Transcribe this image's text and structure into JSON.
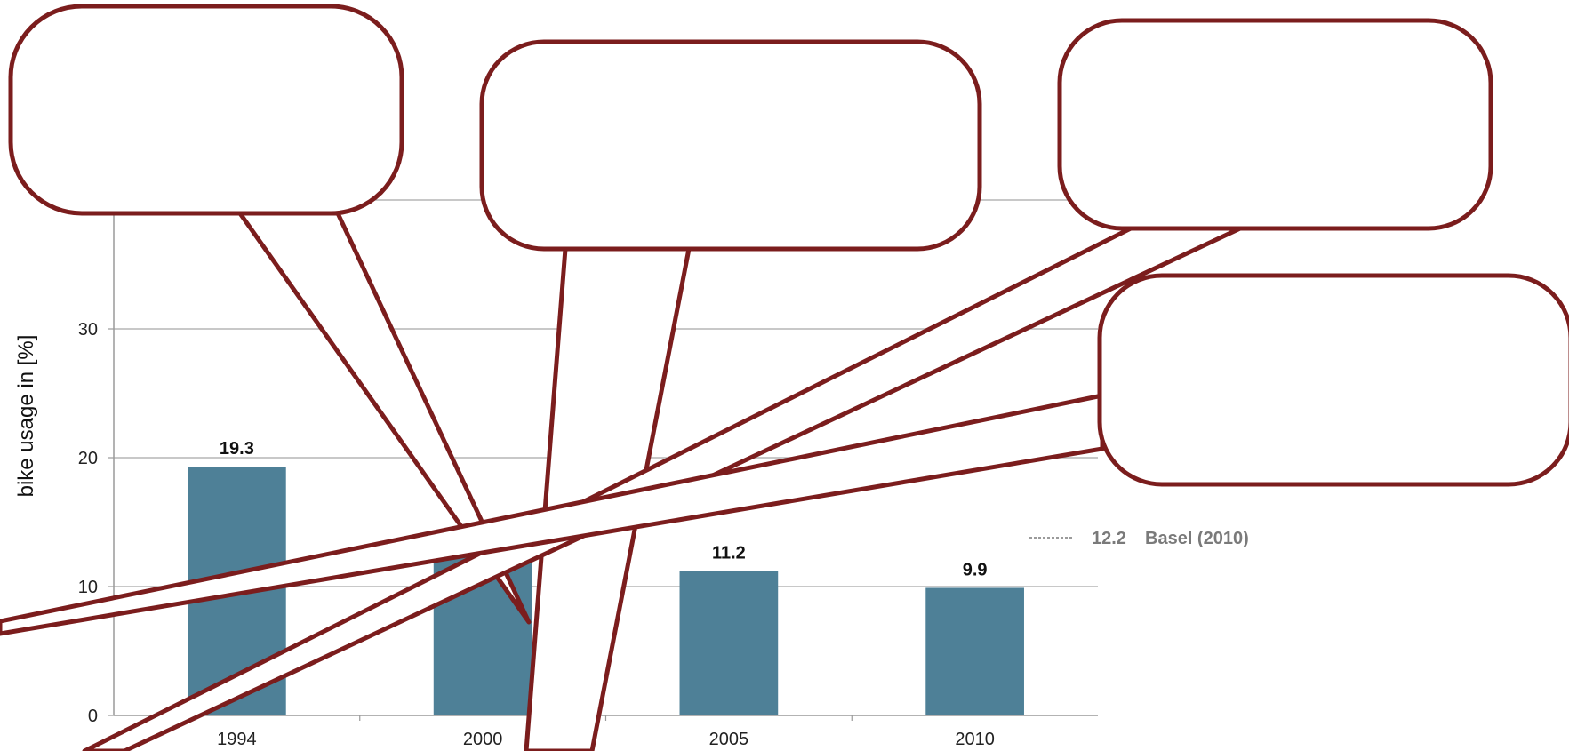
{
  "chart_data": {
    "type": "bar",
    "categories": [
      "1994",
      "2000",
      "2005",
      "2010"
    ],
    "values": [
      19.3,
      13.0,
      11.2,
      9.9
    ],
    "value_labels": [
      "19.3",
      "",
      "11.2",
      "9.9"
    ],
    "ylabel": "bike usage in [%]",
    "ylim": [
      0,
      40
    ],
    "yticks": [
      "0",
      "10",
      "20",
      "30"
    ],
    "grid": true,
    "reference_line": {
      "value": 12.2,
      "value_label": "12.2",
      "label": "Basel (2010)"
    }
  },
  "colors": {
    "bar": "#4e8097",
    "callout_stroke": "#7b1d1d",
    "grid": "#a6a6a6",
    "axis": "#9a9a9a",
    "reference_text": "#7a7a7a"
  }
}
